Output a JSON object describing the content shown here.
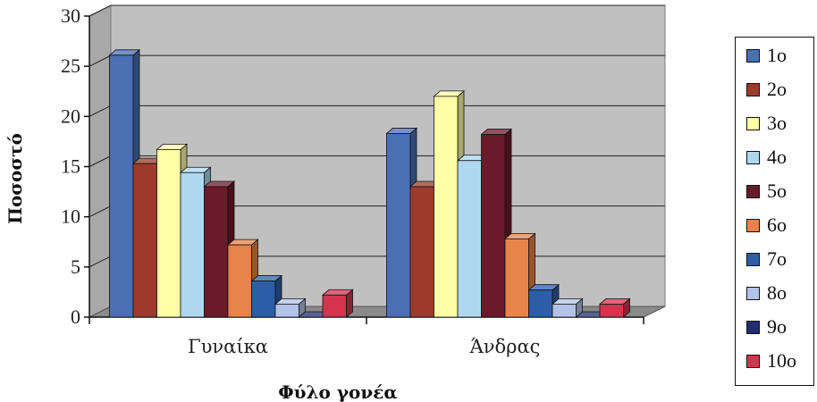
{
  "chart_data": {
    "type": "bar",
    "title": "",
    "xlabel": "Φύλο γονέα",
    "ylabel": "Ποσοστό",
    "ylim": [
      0,
      30
    ],
    "yticks": [
      0,
      5,
      10,
      15,
      20,
      25,
      30
    ],
    "grid": true,
    "legend_position": "right",
    "categories": [
      "Γυναίκα",
      "Άνδρας"
    ],
    "series": [
      {
        "name": "1ο",
        "color": "#4a6fb5",
        "values": [
          26.1,
          18.3
        ]
      },
      {
        "name": "2ο",
        "color": "#9c3b2b",
        "values": [
          15.3,
          13.0
        ]
      },
      {
        "name": "3ο",
        "color": "#ffffa8",
        "values": [
          16.7,
          22.0
        ]
      },
      {
        "name": "4ο",
        "color": "#aed8f0",
        "values": [
          14.4,
          15.6
        ]
      },
      {
        "name": "5ο",
        "color": "#6b1a2a",
        "values": [
          13.0,
          18.2
        ]
      },
      {
        "name": "6ο",
        "color": "#e8844a",
        "values": [
          7.2,
          7.8
        ]
      },
      {
        "name": "7ο",
        "color": "#2c5ea8",
        "values": [
          3.6,
          2.7
        ]
      },
      {
        "name": "8ο",
        "color": "#b3c3e8",
        "values": [
          1.3,
          1.3
        ]
      },
      {
        "name": "9ο",
        "color": "#1f2f6e",
        "values": [
          0.0,
          0.0
        ]
      },
      {
        "name": "10ο",
        "color": "#d4344e",
        "values": [
          2.2,
          1.3
        ]
      }
    ]
  }
}
